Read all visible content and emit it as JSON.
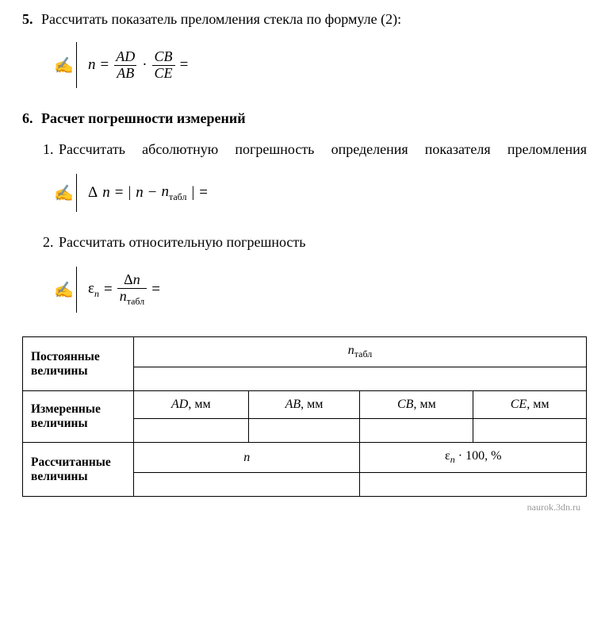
{
  "item5": {
    "number": "5.",
    "text": "Рассчитать показатель преломления стекла по формуле (2):",
    "formula": {
      "lhs": "n",
      "eq": "=",
      "frac1_top": "AD",
      "frac1_bot": "AB",
      "dot": "·",
      "frac2_top": "CB",
      "frac2_bot": "CE",
      "eq2": "="
    }
  },
  "item6": {
    "number": "6.",
    "heading": "Расчет погрешности измерений",
    "sub1": {
      "num": "1.",
      "text": "Рассчитать абсолютную погрешность определения показателя преломления"
    },
    "formula1": {
      "lhs_delta": "Δ",
      "lhs_n": "n",
      "eq": "=",
      "bar1": "|",
      "n": "n",
      "minus": "−",
      "n2": "n",
      "sub": "табл",
      "bar2": "|",
      "eq2": "="
    },
    "sub2": {
      "num": "2.",
      "text": "Рассчитать относительную погрешность"
    },
    "formula2": {
      "eps": "ε",
      "eps_sub": "n",
      "eq": "=",
      "frac_top_delta": "Δ",
      "frac_top_n": "n",
      "frac_bot_n": "n",
      "frac_bot_sub": "табл",
      "eq2": "="
    }
  },
  "table": {
    "row1_label": "Постоянные величины",
    "row1_header_n": "n",
    "row1_header_sub": "табл",
    "row2_label": "Измеренные величины",
    "col_AD": "AD",
    "col_AB": "AB",
    "col_CB": "CB",
    "col_CE": "CE",
    "unit": ", мм",
    "row3_label": "Рассчитанные величины",
    "row3_n": "n",
    "row3_eps": "ε",
    "row3_eps_sub": "n",
    "row3_tail": " · 100, %"
  },
  "watermark": "naurok.3dn.ru",
  "icons": {
    "hand": "✍"
  }
}
